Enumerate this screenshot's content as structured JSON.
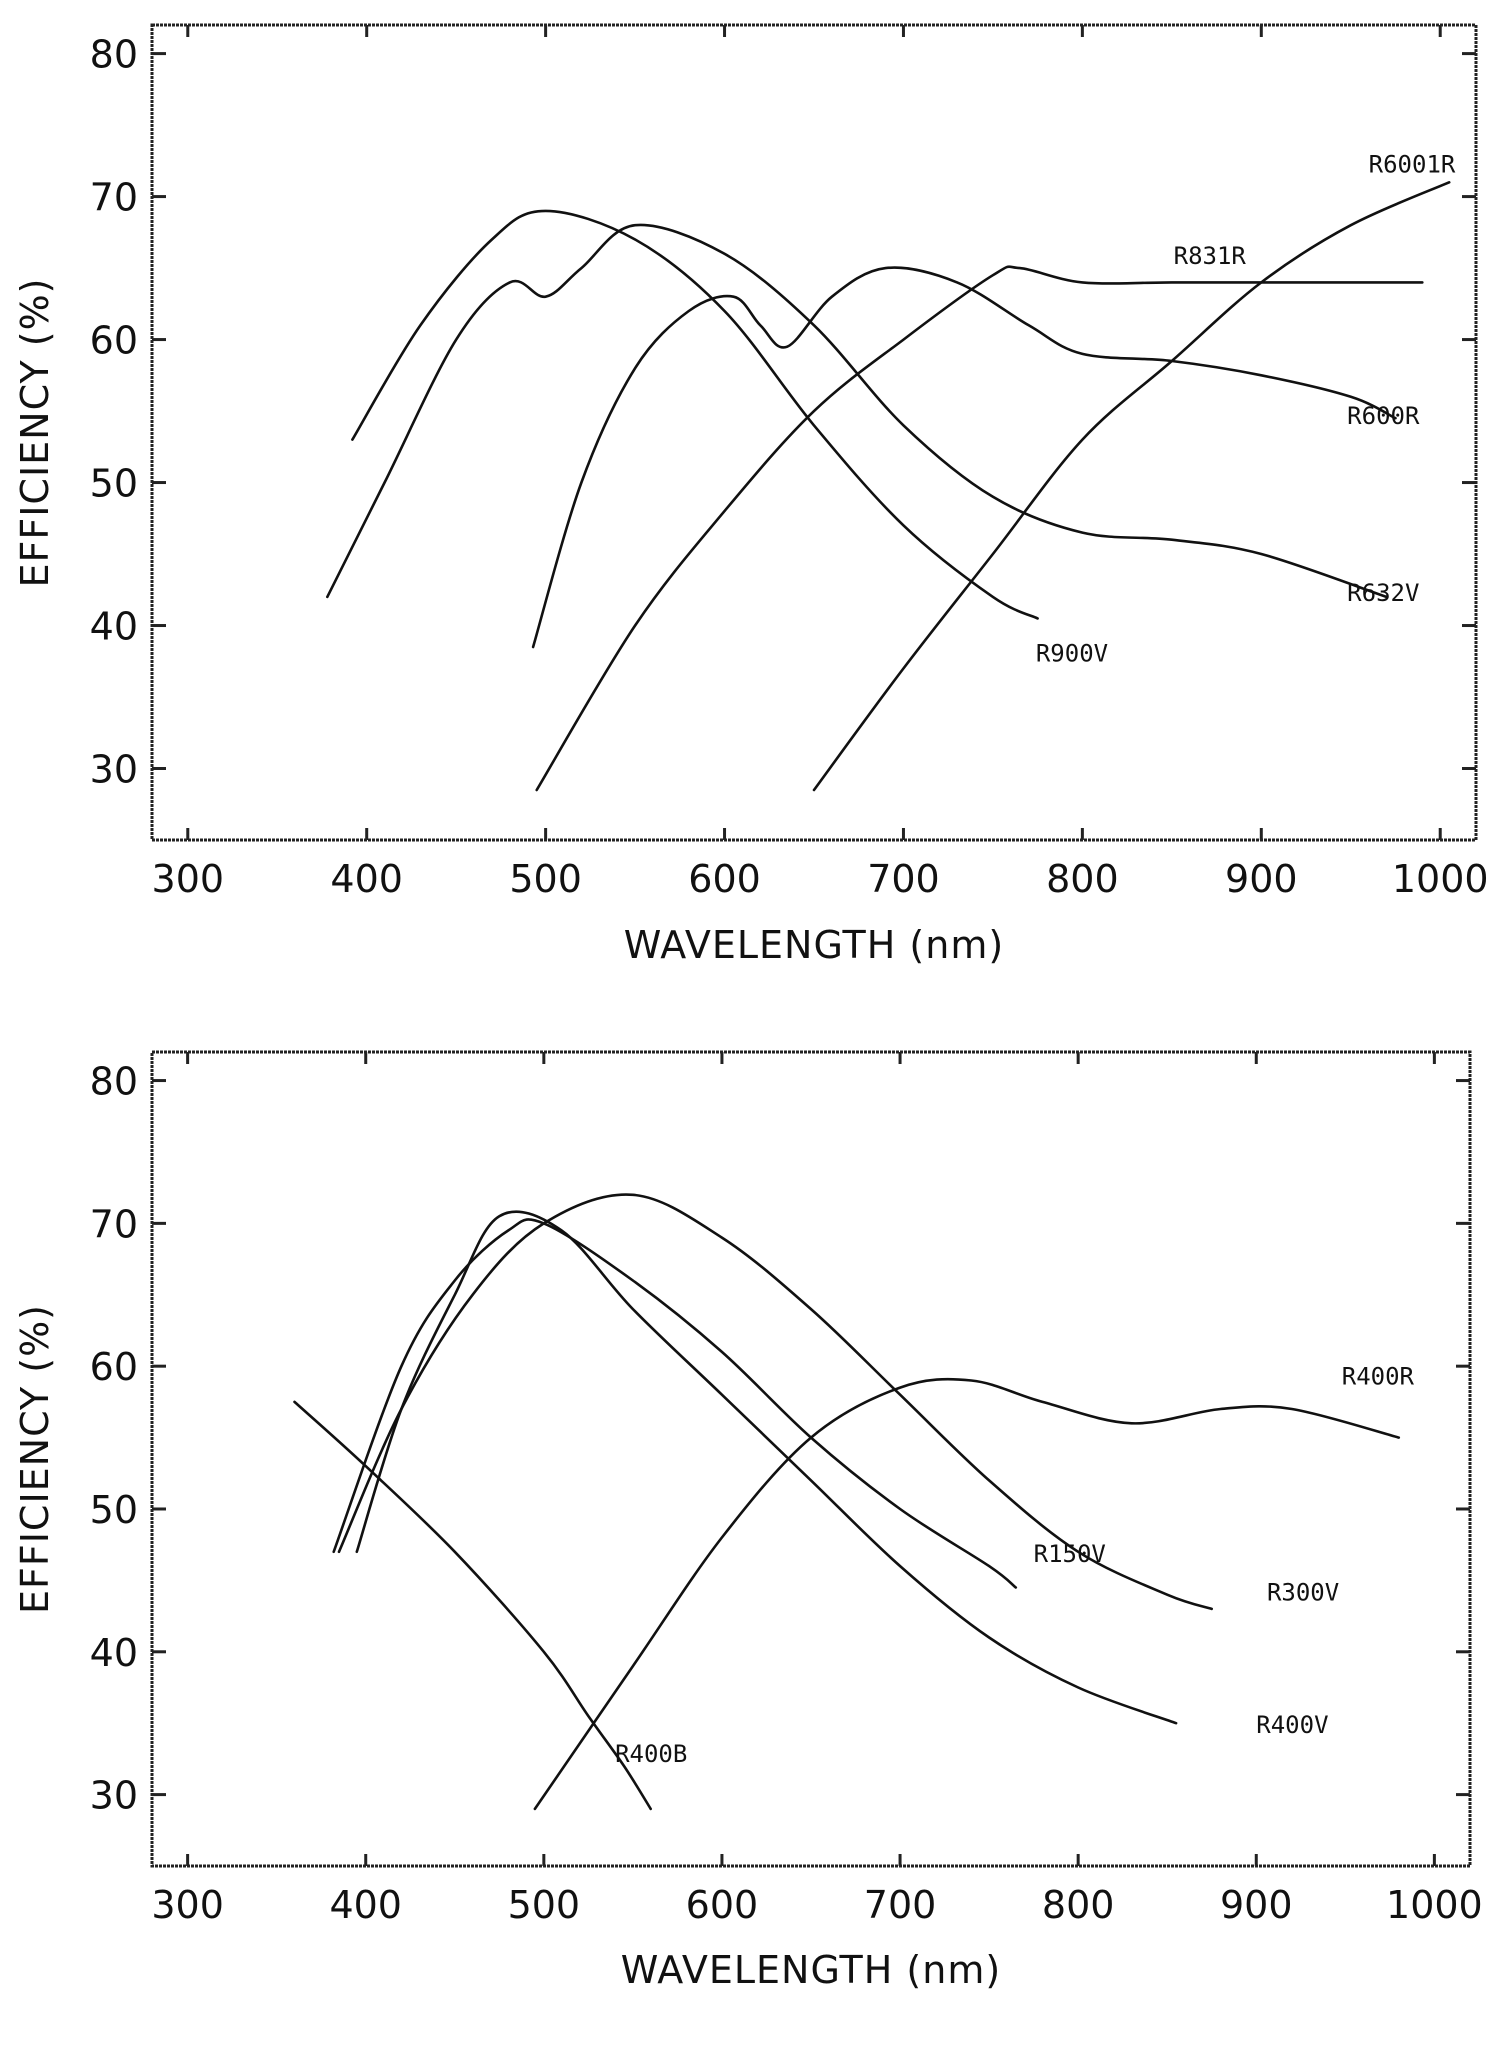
{
  "chart_data": [
    {
      "type": "line",
      "xlabel": "WAVELENGTH (nm)",
      "ylabel": "EFFICIENCY (%)",
      "xlim": [
        280,
        1020
      ],
      "ylim": [
        25,
        82
      ],
      "xticks": [
        "300",
        "400",
        "500",
        "600",
        "700",
        "800",
        "900",
        "1000"
      ],
      "yticks": [
        "30",
        "40",
        "50",
        "60",
        "70",
        "80"
      ],
      "grid": false,
      "series": [
        {
          "name": "R6001R",
          "x": [
            650,
            700,
            750,
            800,
            850,
            900,
            950,
            1005
          ],
          "y": [
            28.5,
            37,
            45,
            53,
            58.5,
            64,
            68,
            71
          ]
        },
        {
          "name": "R831R",
          "x": [
            495,
            550,
            600,
            650,
            700,
            750,
            765,
            800,
            850,
            900,
            990
          ],
          "y": [
            28.5,
            40,
            48,
            55,
            60,
            64.5,
            65,
            64,
            64,
            64,
            64
          ]
        },
        {
          "name": "R600R",
          "x": [
            493,
            520,
            550,
            580,
            605,
            620,
            635,
            660,
            690,
            730,
            770,
            800,
            850,
            900,
            950,
            975
          ],
          "y": [
            38.5,
            50,
            58,
            62,
            63,
            61,
            59.5,
            63,
            65,
            64,
            61,
            59,
            58.5,
            57.5,
            56,
            54.5
          ]
        },
        {
          "name": "R632V",
          "x": [
            378,
            410,
            450,
            480,
            500,
            520,
            550,
            600,
            650,
            700,
            750,
            800,
            850,
            900,
            970
          ],
          "y": [
            42,
            50,
            60,
            64,
            63,
            65,
            68,
            66,
            61,
            54,
            49,
            46.5,
            46,
            45,
            42
          ]
        },
        {
          "name": "R900V",
          "x": [
            392,
            430,
            470,
            500,
            550,
            600,
            650,
            700,
            750,
            775
          ],
          "y": [
            53,
            61,
            67,
            69,
            67,
            62,
            54,
            47,
            42,
            40.5
          ]
        }
      ],
      "annotations": [
        {
          "text": "R6001R",
          "x": 960,
          "y": 71.7
        },
        {
          "text": "R831R",
          "x": 851,
          "y": 65.3
        },
        {
          "text": "R600R",
          "x": 948,
          "y": 54.1
        },
        {
          "text": "R632V",
          "x": 948,
          "y": 41.7
        },
        {
          "text": "R900V",
          "x": 774,
          "y": 37.5
        }
      ]
    },
    {
      "type": "line",
      "xlabel": "WAVELENGTH (nm)",
      "ylabel": "EFFICIENCY (%)",
      "xlim": [
        280,
        1020
      ],
      "ylim": [
        25,
        82
      ],
      "xticks": [
        "300",
        "400",
        "500",
        "600",
        "700",
        "800",
        "900",
        "1000"
      ],
      "yticks": [
        "30",
        "40",
        "50",
        "60",
        "70",
        "80"
      ],
      "grid": false,
      "series": [
        {
          "name": "R400R",
          "x": [
            495,
            550,
            600,
            650,
            700,
            740,
            780,
            830,
            880,
            920,
            980
          ],
          "y": [
            29,
            39,
            48,
            55,
            58.5,
            59,
            57.5,
            56,
            57,
            57,
            55
          ]
        },
        {
          "name": "R150V",
          "x": [
            382,
            420,
            450,
            480,
            500,
            550,
            600,
            650,
            700,
            750,
            765
          ],
          "y": [
            47,
            60,
            66,
            69.5,
            70,
            66,
            61,
            55,
            50,
            46,
            44.5
          ]
        },
        {
          "name": "R300V",
          "x": [
            385,
            420,
            460,
            500,
            550,
            600,
            650,
            700,
            750,
            800,
            850,
            875
          ],
          "y": [
            47,
            57,
            65,
            70,
            72,
            69,
            64,
            58,
            52,
            47,
            44,
            43
          ]
        },
        {
          "name": "R400V",
          "x": [
            395,
            420,
            450,
            475,
            510,
            550,
            600,
            650,
            700,
            750,
            800,
            855
          ],
          "y": [
            47,
            57,
            65,
            70.5,
            69.5,
            64,
            58,
            52,
            46,
            41,
            37.5,
            35
          ]
        },
        {
          "name": "R400B",
          "x": [
            360,
            400,
            450,
            500,
            525,
            545,
            560
          ],
          "y": [
            57.5,
            53,
            47,
            40,
            35.5,
            32,
            29
          ]
        }
      ],
      "annotations": [
        {
          "text": "R400R",
          "x": 948,
          "y": 58.7
        },
        {
          "text": "R150V",
          "x": 775,
          "y": 46.3
        },
        {
          "text": "R300V",
          "x": 906,
          "y": 43.6
        },
        {
          "text": "R400V",
          "x": 900,
          "y": 34.3
        },
        {
          "text": "R400B",
          "x": 540,
          "y": 32.3
        }
      ]
    }
  ]
}
